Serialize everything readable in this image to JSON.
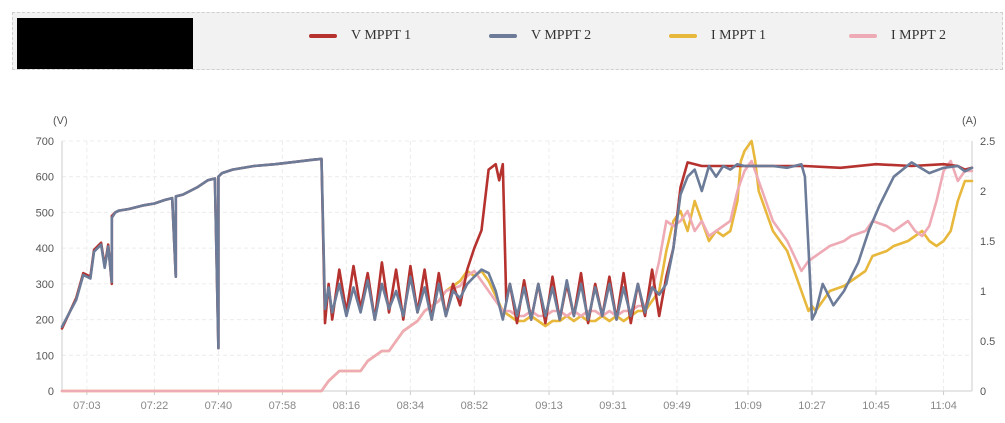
{
  "legend": {
    "items": [
      {
        "label": "V MPPT 1",
        "color": "#b5322f"
      },
      {
        "label": "V MPPT 2",
        "color": "#6b7b98"
      },
      {
        "label": "I MPPT 1",
        "color": "#e8b83c"
      },
      {
        "label": "I MPPT 2",
        "color": "#eeabb5"
      }
    ]
  },
  "chart_data": {
    "type": "line",
    "x_ticks": [
      "07:03",
      "07:22",
      "07:40",
      "07:58",
      "08:16",
      "08:34",
      "08:52",
      "09:13",
      "09:31",
      "09:49",
      "10:09",
      "10:27",
      "10:45",
      "11:04"
    ],
    "y_left": {
      "unit": "(V)",
      "ylim": [
        0,
        700
      ],
      "ticks": [
        "700",
        "600",
        "500",
        "400",
        "300",
        "200",
        "100",
        "0"
      ]
    },
    "y_right": {
      "unit": "(A)",
      "ylim": [
        0,
        2.5
      ],
      "ticks": [
        "2.5",
        "2",
        "1.5",
        "1",
        "0.5",
        "0"
      ]
    },
    "grid": true,
    "legend_position": "top",
    "series": [
      {
        "name": "V MPPT 1",
        "axis": "left",
        "color": "#b5322f",
        "x": [
          "06:56",
          "07:00",
          "07:02",
          "07:04",
          "07:05",
          "07:07",
          "07:08",
          "07:09",
          "07:10",
          "07:10",
          "07:11",
          "07:12",
          "07:15",
          "07:19",
          "07:22",
          "07:25",
          "07:27",
          "07:28",
          "07:28",
          "07:30",
          "07:34",
          "07:37",
          "07:39",
          "07:40",
          "07:40",
          "07:41",
          "07:44",
          "07:50",
          "07:56",
          "08:02",
          "08:07",
          "08:09",
          "08:10",
          "08:11",
          "08:12",
          "08:14",
          "08:16",
          "08:18",
          "08:20",
          "08:22",
          "08:24",
          "08:26",
          "08:28",
          "08:30",
          "08:32",
          "08:34",
          "08:36",
          "08:38",
          "08:40",
          "08:42",
          "08:44",
          "08:46",
          "08:48",
          "08:50",
          "08:52",
          "08:54",
          "08:56",
          "08:58",
          "08:59",
          "09:00",
          "09:01",
          "09:02",
          "09:04",
          "09:06",
          "09:08",
          "09:10",
          "09:12",
          "09:14",
          "09:16",
          "09:18",
          "09:20",
          "09:22",
          "09:24",
          "09:26",
          "09:28",
          "09:30",
          "09:32",
          "09:34",
          "09:36",
          "09:38",
          "09:40",
          "09:42",
          "09:44",
          "09:46",
          "09:48",
          "09:50",
          "09:52",
          "09:56",
          "10:05",
          "10:15",
          "10:25",
          "10:35",
          "10:45",
          "10:55",
          "11:04",
          "11:08",
          "11:10",
          "11:12"
        ],
        "values": [
          175,
          260,
          330,
          320,
          395,
          415,
          350,
          410,
          300,
          490,
          500,
          505,
          510,
          520,
          525,
          535,
          540,
          320,
          545,
          550,
          570,
          590,
          595,
          120,
          600,
          610,
          620,
          630,
          635,
          642,
          648,
          650,
          190,
          300,
          200,
          340,
          220,
          350,
          230,
          330,
          200,
          360,
          220,
          340,
          200,
          350,
          220,
          340,
          200,
          330,
          210,
          300,
          240,
          340,
          400,
          450,
          620,
          635,
          590,
          635,
          250,
          300,
          190,
          310,
          200,
          300,
          190,
          320,
          200,
          300,
          210,
          330,
          190,
          300,
          210,
          320,
          200,
          330,
          190,
          300,
          210,
          340,
          210,
          320,
          400,
          570,
          640,
          630,
          630,
          630,
          630,
          625,
          635,
          630,
          635,
          630,
          620,
          625
        ]
      },
      {
        "name": "V MPPT 2",
        "axis": "left",
        "color": "#6b7b98",
        "x": [
          "06:56",
          "07:00",
          "07:02",
          "07:04",
          "07:05",
          "07:07",
          "07:08",
          "07:09",
          "07:10",
          "07:10",
          "07:11",
          "07:12",
          "07:15",
          "07:19",
          "07:22",
          "07:25",
          "07:27",
          "07:28",
          "07:28",
          "07:30",
          "07:34",
          "07:37",
          "07:39",
          "07:40",
          "07:40",
          "07:41",
          "07:44",
          "07:50",
          "07:56",
          "08:02",
          "08:07",
          "08:09",
          "08:10",
          "08:11",
          "08:12",
          "08:14",
          "08:16",
          "08:18",
          "08:20",
          "08:22",
          "08:24",
          "08:26",
          "08:28",
          "08:30",
          "08:32",
          "08:34",
          "08:36",
          "08:38",
          "08:40",
          "08:42",
          "08:44",
          "08:46",
          "08:48",
          "08:50",
          "08:52",
          "08:54",
          "08:56",
          "08:58",
          "09:00",
          "09:02",
          "09:04",
          "09:06",
          "09:08",
          "09:10",
          "09:12",
          "09:14",
          "09:16",
          "09:18",
          "09:20",
          "09:22",
          "09:24",
          "09:26",
          "09:28",
          "09:30",
          "09:32",
          "09:34",
          "09:36",
          "09:38",
          "09:40",
          "09:42",
          "09:44",
          "09:46",
          "09:48",
          "09:50",
          "09:52",
          "09:54",
          "09:56",
          "09:58",
          "10:00",
          "10:02",
          "10:04",
          "10:06",
          "10:08",
          "10:12",
          "10:16",
          "10:20",
          "10:22",
          "10:24",
          "10:25",
          "10:26",
          "10:27",
          "10:28",
          "10:30",
          "10:33",
          "10:36",
          "10:40",
          "10:43",
          "10:46",
          "10:50",
          "10:55",
          "11:00",
          "11:04",
          "11:08",
          "11:10",
          "11:12"
        ],
        "values": [
          180,
          255,
          325,
          315,
          390,
          410,
          345,
          405,
          305,
          485,
          500,
          505,
          510,
          520,
          525,
          535,
          540,
          320,
          545,
          550,
          570,
          590,
          595,
          120,
          600,
          610,
          620,
          630,
          635,
          642,
          648,
          650,
          230,
          290,
          220,
          300,
          210,
          290,
          220,
          310,
          200,
          300,
          230,
          280,
          210,
          320,
          220,
          290,
          200,
          300,
          210,
          280,
          260,
          300,
          320,
          340,
          330,
          280,
          200,
          300,
          210,
          290,
          200,
          300,
          210,
          290,
          200,
          310,
          210,
          300,
          200,
          290,
          210,
          300,
          200,
          290,
          210,
          300,
          220,
          290,
          270,
          300,
          400,
          550,
          600,
          620,
          560,
          630,
          600,
          630,
          620,
          635,
          630,
          630,
          630,
          625,
          630,
          635,
          600,
          400,
          200,
          220,
          300,
          240,
          280,
          360,
          450,
          520,
          600,
          640,
          610,
          625,
          630,
          615,
          625
        ]
      },
      {
        "name": "I MPPT 1",
        "axis": "right",
        "color": "#e8b83c",
        "x": [
          "06:56",
          "08:09",
          "08:10",
          "08:11",
          "08:14",
          "08:16",
          "08:20",
          "08:22",
          "08:26",
          "08:28",
          "08:30",
          "08:32",
          "08:36",
          "08:38",
          "08:42",
          "08:44",
          "08:48",
          "08:50",
          "08:52",
          "08:54",
          "08:56",
          "08:58",
          "09:00",
          "09:02",
          "09:04",
          "09:06",
          "09:08",
          "09:10",
          "09:12",
          "09:14",
          "09:16",
          "09:18",
          "09:20",
          "09:22",
          "09:24",
          "09:26",
          "09:28",
          "09:30",
          "09:32",
          "09:34",
          "09:36",
          "09:38",
          "09:40",
          "09:42",
          "09:44",
          "09:46",
          "09:48",
          "09:50",
          "09:52",
          "09:54",
          "09:56",
          "09:58",
          "10:00",
          "10:02",
          "10:04",
          "10:06",
          "10:07",
          "10:08",
          "10:10",
          "10:11",
          "10:12",
          "10:14",
          "10:16",
          "10:20",
          "10:22",
          "10:24",
          "10:26",
          "10:27",
          "10:28",
          "10:30",
          "10:32",
          "10:36",
          "10:38",
          "10:42",
          "10:44",
          "10:48",
          "10:50",
          "10:54",
          "10:56",
          "10:58",
          "11:00",
          "11:02",
          "11:04",
          "11:06",
          "11:08",
          "11:10",
          "11:12"
        ],
        "values": [
          0,
          0,
          0.05,
          0.1,
          0.2,
          0.2,
          0.2,
          0.3,
          0.4,
          0.4,
          0.5,
          0.6,
          0.7,
          0.8,
          0.9,
          1.0,
          1.1,
          1.2,
          1.15,
          1.2,
          1.1,
          0.95,
          0.8,
          0.75,
          0.7,
          0.7,
          0.75,
          0.7,
          0.65,
          0.7,
          0.7,
          0.75,
          0.7,
          0.75,
          0.7,
          0.7,
          0.75,
          0.7,
          0.75,
          0.7,
          0.75,
          0.8,
          0.8,
          0.9,
          1.0,
          1.4,
          1.7,
          1.8,
          1.6,
          1.9,
          1.7,
          1.5,
          1.6,
          1.55,
          1.6,
          1.9,
          2.3,
          2.4,
          2.5,
          2.3,
          2.0,
          1.8,
          1.6,
          1.4,
          1.2,
          1.0,
          0.8,
          0.85,
          0.8,
          0.9,
          1.0,
          1.05,
          1.1,
          1.2,
          1.35,
          1.4,
          1.45,
          1.5,
          1.55,
          1.6,
          1.5,
          1.45,
          1.5,
          1.6,
          1.9,
          2.1,
          2.1
        ]
      },
      {
        "name": "I MPPT 2",
        "axis": "right",
        "color": "#eeabb5",
        "x": [
          "06:56",
          "08:09",
          "08:10",
          "08:11",
          "08:14",
          "08:16",
          "08:20",
          "08:22",
          "08:26",
          "08:28",
          "08:30",
          "08:32",
          "08:36",
          "08:38",
          "08:42",
          "08:44",
          "08:48",
          "08:50",
          "08:52",
          "08:54",
          "08:56",
          "08:58",
          "09:00",
          "09:02",
          "09:04",
          "09:06",
          "09:08",
          "09:10",
          "09:12",
          "09:14",
          "09:16",
          "09:18",
          "09:20",
          "09:22",
          "09:24",
          "09:26",
          "09:28",
          "09:30",
          "09:32",
          "09:34",
          "09:36",
          "09:38",
          "09:40",
          "09:42",
          "09:44",
          "09:46",
          "09:48",
          "09:50",
          "09:52",
          "09:54",
          "09:56",
          "09:58",
          "10:00",
          "10:02",
          "10:04",
          "10:06",
          "10:08",
          "10:10",
          "10:12",
          "10:14",
          "10:16",
          "10:20",
          "10:22",
          "10:24",
          "10:26",
          "10:28",
          "10:30",
          "10:32",
          "10:36",
          "10:38",
          "10:42",
          "10:44",
          "10:48",
          "10:50",
          "10:54",
          "10:56",
          "10:58",
          "11:00",
          "11:02",
          "11:04",
          "11:06",
          "11:08",
          "11:10",
          "11:12"
        ],
        "values": [
          0,
          0,
          0.05,
          0.1,
          0.2,
          0.2,
          0.2,
          0.3,
          0.4,
          0.4,
          0.5,
          0.6,
          0.7,
          0.8,
          0.9,
          1.0,
          1.05,
          1.15,
          1.2,
          1.1,
          1.0,
          0.9,
          0.8,
          0.8,
          0.75,
          0.75,
          0.8,
          0.75,
          0.75,
          0.8,
          0.8,
          0.75,
          0.8,
          0.75,
          0.8,
          0.8,
          0.75,
          0.8,
          0.75,
          0.8,
          0.8,
          0.85,
          0.85,
          1.0,
          1.3,
          1.7,
          1.65,
          1.7,
          1.8,
          1.6,
          1.7,
          1.55,
          1.6,
          1.65,
          1.7,
          2.0,
          2.2,
          2.3,
          2.1,
          1.9,
          1.7,
          1.5,
          1.35,
          1.2,
          1.3,
          1.35,
          1.4,
          1.45,
          1.5,
          1.55,
          1.6,
          1.7,
          1.65,
          1.6,
          1.7,
          1.6,
          1.55,
          1.65,
          1.9,
          2.2,
          2.3,
          2.1,
          2.2,
          2.2
        ]
      }
    ]
  }
}
